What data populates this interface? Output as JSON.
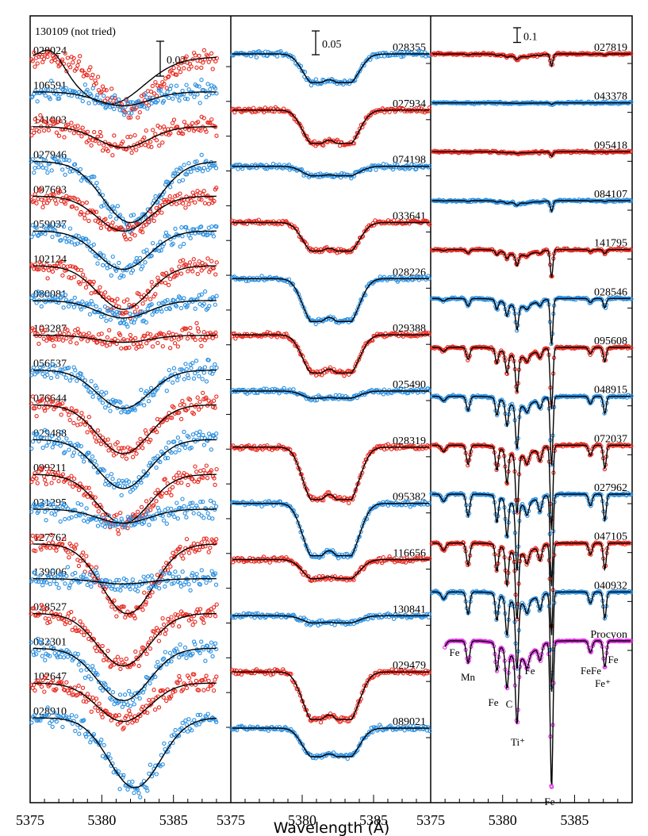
{
  "chart_data": {
    "type": "scatter",
    "xlabel": "Wavelength (Å)",
    "xlim": [
      5375,
      5389
    ],
    "xticks": [
      "5375",
      "5380",
      "5385",
      "5375",
      "5380",
      "5385",
      "5375",
      "5380",
      "5385"
    ],
    "colors": {
      "red": "#e8281e",
      "blue": "#2a8fe0",
      "magenta": "#e22fe6",
      "fit": "#000000"
    },
    "panels": [
      {
        "scale_label": "0.02",
        "scale_value": 0.02,
        "note": "130109 (not tried)",
        "spectra": [
          {
            "id": "028024",
            "color": "red",
            "depth": 0.03,
            "center": 5382.0,
            "width": 3.2,
            "fit_offset": true
          },
          {
            "id": "106591",
            "color": "blue",
            "depth": 0.008,
            "center": 5381.5,
            "width": 3.0
          },
          {
            "id": "141003",
            "color": "red",
            "depth": 0.012,
            "center": 5381.5,
            "width": 3.0
          },
          {
            "id": "027946",
            "color": "blue",
            "depth": 0.035,
            "center": 5382.0,
            "width": 3.2
          },
          {
            "id": "097603",
            "color": "red",
            "depth": 0.02,
            "center": 5381.5,
            "width": 3.0
          },
          {
            "id": "059037",
            "color": "blue",
            "depth": 0.022,
            "center": 5381.5,
            "width": 3.0
          },
          {
            "id": "102124",
            "color": "red",
            "depth": 0.025,
            "center": 5381.5,
            "width": 3.0
          },
          {
            "id": "080081",
            "color": "blue",
            "depth": 0.01,
            "center": 5381.5,
            "width": 3.0
          },
          {
            "id": "103287",
            "color": "red",
            "depth": 0.004,
            "center": 5381.5,
            "width": 3.0
          },
          {
            "id": "056537",
            "color": "blue",
            "depth": 0.022,
            "center": 5381.5,
            "width": 3.0
          },
          {
            "id": "076644",
            "color": "red",
            "depth": 0.028,
            "center": 5381.5,
            "width": 3.0
          },
          {
            "id": "029488",
            "color": "blue",
            "depth": 0.028,
            "center": 5381.5,
            "width": 3.0
          },
          {
            "id": "099211",
            "color": "red",
            "depth": 0.028,
            "center": 5381.5,
            "width": 3.0
          },
          {
            "id": "031295",
            "color": "blue",
            "depth": 0.008,
            "center": 5381.5,
            "width": 3.0
          },
          {
            "id": "127762",
            "color": "red",
            "depth": 0.04,
            "center": 5381.8,
            "width": 3.0
          },
          {
            "id": "139006",
            "color": "blue",
            "depth": 0.003,
            "center": 5381.5,
            "width": 3.0
          },
          {
            "id": "028527",
            "color": "red",
            "depth": 0.03,
            "center": 5381.5,
            "width": 3.0
          },
          {
            "id": "032301",
            "color": "blue",
            "depth": 0.03,
            "center": 5381.5,
            "width": 3.0
          },
          {
            "id": "102647",
            "color": "red",
            "depth": 0.022,
            "center": 5381.5,
            "width": 3.0
          },
          {
            "id": "028910",
            "color": "blue",
            "depth": 0.04,
            "center": 5382.3,
            "width": 3.0
          }
        ]
      },
      {
        "scale_label": "0.05",
        "scale_value": 0.05,
        "spectra": [
          {
            "id": "028355",
            "color": "blue",
            "depth": 0.06,
            "center": 5382.0,
            "width": 2.8,
            "double": true
          },
          {
            "id": "027934",
            "color": "red",
            "depth": 0.07,
            "center": 5382.0,
            "width": 2.8,
            "double": true
          },
          {
            "id": "074198",
            "color": "blue",
            "depth": 0.02,
            "center": 5382.0,
            "width": 2.8,
            "double": true
          },
          {
            "id": "033641",
            "color": "red",
            "depth": 0.06,
            "center": 5382.0,
            "width": 2.8,
            "double": true
          },
          {
            "id": "028226",
            "color": "blue",
            "depth": 0.09,
            "center": 5382.0,
            "width": 2.8,
            "double": true
          },
          {
            "id": "029388",
            "color": "red",
            "depth": 0.08,
            "center": 5382.0,
            "width": 2.8,
            "double": true
          },
          {
            "id": "025490",
            "color": "blue",
            "depth": 0.015,
            "center": 5382.0,
            "width": 2.8,
            "double": true
          },
          {
            "id": "028319",
            "color": "red",
            "depth": 0.11,
            "center": 5382.0,
            "width": 2.8,
            "double": true
          },
          {
            "id": "095382",
            "color": "blue",
            "depth": 0.11,
            "center": 5382.0,
            "width": 2.8,
            "double": true
          },
          {
            "id": "116656",
            "color": "red",
            "depth": 0.04,
            "center": 5382.0,
            "width": 2.8,
            "double": true
          },
          {
            "id": "130841",
            "color": "blue",
            "depth": 0.015,
            "center": 5382.0,
            "width": 2.8,
            "double": true
          },
          {
            "id": "029479",
            "color": "red",
            "depth": 0.1,
            "center": 5382.0,
            "width": 2.8,
            "double": true
          },
          {
            "id": "089021",
            "color": "blue",
            "depth": 0.06,
            "center": 5382.0,
            "width": 2.8,
            "double": true
          }
        ]
      },
      {
        "scale_label": "0.1",
        "scale_value": 0.1,
        "spectra": [
          {
            "id": "027819",
            "color": "red",
            "depth": 0.08
          },
          {
            "id": "043378",
            "color": "blue",
            "depth": 0.01
          },
          {
            "id": "095418",
            "color": "red",
            "depth": 0.03
          },
          {
            "id": "084107",
            "color": "blue",
            "depth": 0.07
          },
          {
            "id": "141795",
            "color": "red",
            "depth": 0.18
          },
          {
            "id": "028546",
            "color": "blue",
            "depth": 0.3
          },
          {
            "id": "095608",
            "color": "red",
            "depth": 0.4
          },
          {
            "id": "048915",
            "color": "blue",
            "depth": 0.45
          },
          {
            "id": "072037",
            "color": "red",
            "depth": 0.55
          },
          {
            "id": "027962",
            "color": "blue",
            "depth": 0.6
          },
          {
            "id": "047105",
            "color": "red",
            "depth": 0.6
          },
          {
            "id": "040932",
            "color": "blue",
            "depth": 0.65
          },
          {
            "id": "Procyon",
            "color": "magenta",
            "depth": 1.0
          }
        ],
        "line_ids": [
          {
            "label": "Fe",
            "wavelength": 5375.9
          },
          {
            "label": "Mn",
            "wavelength": 5377.6
          },
          {
            "label": "Fe",
            "wavelength": 5379.6
          },
          {
            "label": "C",
            "wavelength": 5380.3
          },
          {
            "label": "Ti⁺",
            "wavelength": 5381.0
          },
          {
            "label": "Fe",
            "wavelength": 5381.7
          },
          {
            "label": "Fe",
            "wavelength": 5383.4
          },
          {
            "label": "FeFe",
            "wavelength": 5386.1
          },
          {
            "label": "Fe",
            "wavelength": 5387.1
          },
          {
            "label": "Fe⁺",
            "wavelength": 5386.9
          }
        ]
      }
    ]
  }
}
